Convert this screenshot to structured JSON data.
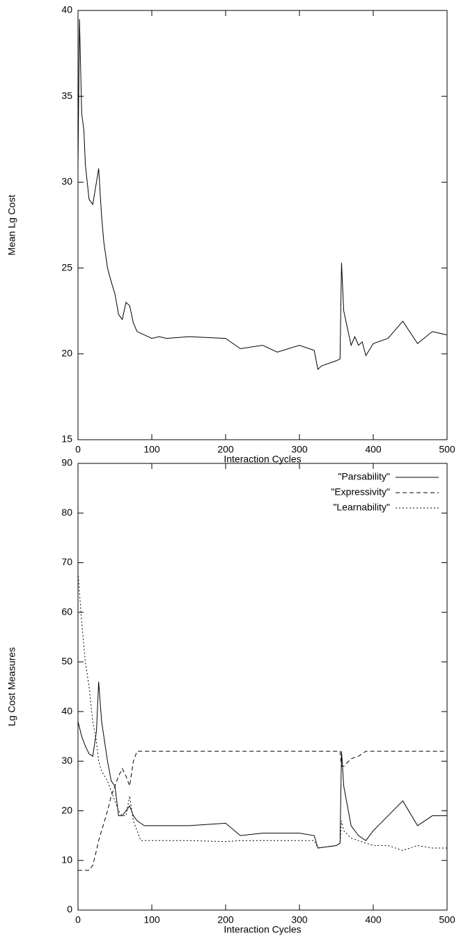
{
  "chart_data": [
    {
      "type": "line",
      "ylabel": "Mean Lg Cost",
      "xlabel": "Interaction Cycles",
      "x": [
        0,
        2,
        5,
        8,
        10,
        15,
        20,
        25,
        28,
        32,
        35,
        40,
        45,
        50,
        55,
        60,
        65,
        70,
        75,
        80,
        90,
        100,
        110,
        120,
        150,
        200,
        220,
        250,
        270,
        300,
        320,
        325,
        330,
        350,
        355,
        357,
        360,
        365,
        370,
        375,
        380,
        385,
        390,
        400,
        420,
        440,
        460,
        480,
        500
      ],
      "values": [
        31,
        39.5,
        34,
        33,
        31,
        29,
        28.7,
        30,
        30.8,
        28,
        26.5,
        25,
        24.2,
        23.5,
        22.3,
        22,
        23,
        22.8,
        21.8,
        21.3,
        21.1,
        20.9,
        21,
        20.9,
        21,
        20.9,
        20.3,
        20.5,
        20.1,
        20.5,
        20.2,
        19.1,
        19.3,
        19.6,
        19.7,
        25.3,
        22.5,
        21.5,
        20.5,
        21,
        20.5,
        20.7,
        19.9,
        20.6,
        20.9,
        21.9,
        20.6,
        21.3,
        21.1
      ],
      "color": "#000000",
      "xlim": [
        0,
        500
      ],
      "xticks": [
        0,
        100,
        200,
        300,
        400,
        500
      ],
      "ylim": [
        15,
        40
      ],
      "yticks": [
        15,
        20,
        25,
        30,
        35,
        40
      ]
    },
    {
      "type": "line",
      "ylabel": "Lg Cost Measures",
      "xlabel": "Interaction Cycles",
      "x": [
        0,
        5,
        10,
        15,
        20,
        25,
        28,
        32,
        40,
        45,
        50,
        55,
        60,
        65,
        70,
        75,
        80,
        85,
        90,
        100,
        150,
        200,
        220,
        250,
        300,
        320,
        325,
        350,
        355,
        357,
        360,
        370,
        380,
        390,
        400,
        420,
        440,
        460,
        480,
        500
      ],
      "series": [
        {
          "name": "\"Parsability\"",
          "color": "#000000",
          "dash": "solid",
          "values": [
            38,
            35,
            33,
            31.5,
            31,
            36,
            46,
            38,
            30,
            26,
            25,
            19,
            19,
            20,
            21,
            19,
            18,
            17.5,
            17,
            17,
            17,
            17.5,
            15,
            15.5,
            15.5,
            15,
            12.5,
            13,
            13.5,
            32,
            25,
            17,
            15,
            14,
            16,
            19,
            22,
            17,
            19,
            19
          ]
        },
        {
          "name": "\"Expressivity\"",
          "color": "#000000",
          "dash": "dashed",
          "values": [
            8,
            8,
            8,
            8,
            9,
            12,
            14,
            16,
            20,
            23,
            25,
            27,
            28.5,
            27,
            25,
            30,
            32,
            32,
            32,
            32,
            32,
            32,
            32,
            32,
            32,
            32,
            32,
            32,
            32,
            29,
            29,
            30.5,
            31,
            32,
            32,
            32,
            32,
            32,
            32,
            32
          ]
        },
        {
          "name": "\"Learnability\"",
          "color": "#000000",
          "dash": "dotted",
          "values": [
            68,
            58,
            50,
            45,
            38,
            34,
            30,
            28,
            26,
            24,
            22,
            20,
            19,
            19,
            23,
            18,
            16,
            14,
            14,
            14,
            14,
            13.8,
            14,
            14,
            14,
            14,
            12.5,
            13,
            13.5,
            18,
            16,
            14.5,
            14,
            13.5,
            13,
            13,
            12,
            13,
            12.5,
            12.5
          ]
        }
      ],
      "legend": "upper right",
      "xlim": [
        0,
        500
      ],
      "xticks": [
        0,
        100,
        200,
        300,
        400,
        500
      ],
      "ylim": [
        0,
        90
      ],
      "yticks": [
        0,
        10,
        20,
        30,
        40,
        50,
        60,
        70,
        80,
        90
      ]
    }
  ]
}
